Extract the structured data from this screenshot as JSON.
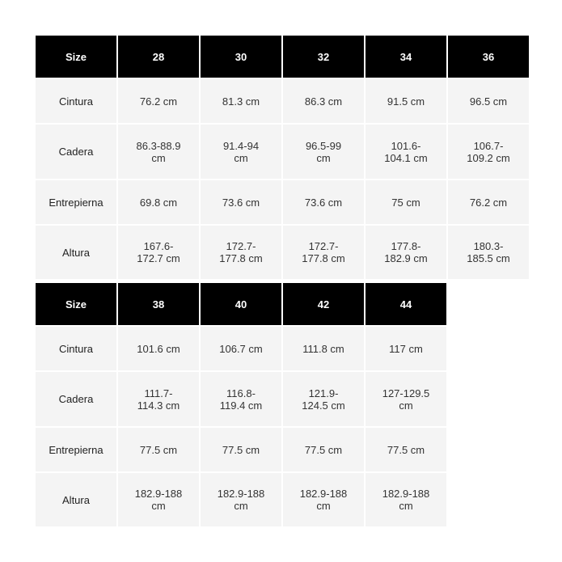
{
  "header_label": "Size",
  "row_labels": [
    "Cintura",
    "Cadera",
    "Entrepierna",
    "Altura"
  ],
  "table1": {
    "sizes": [
      "28",
      "30",
      "32",
      "34",
      "36"
    ],
    "cintura": [
      "76.2 cm",
      "81.3 cm",
      "86.3 cm",
      "91.5 cm",
      "96.5 cm"
    ],
    "cadera": [
      "86.3-88.9 cm",
      "91.4-94 cm",
      "96.5-99 cm",
      "101.6-104.1 cm",
      "106.7-109.2 cm"
    ],
    "entrepierna": [
      "69.8 cm",
      "73.6 cm",
      "73.6 cm",
      "75 cm",
      "76.2 cm"
    ],
    "altura": [
      "167.6-172.7 cm",
      "172.7-177.8 cm",
      "172.7-177.8 cm",
      "177.8-182.9 cm",
      "180.3-185.5 cm"
    ]
  },
  "table2": {
    "sizes": [
      "38",
      "40",
      "42",
      "44"
    ],
    "cintura": [
      "101.6 cm",
      "106.7 cm",
      "111.8 cm",
      "117 cm"
    ],
    "cadera": [
      "111.7-114.3 cm",
      "116.8-119.4 cm",
      "121.9-124.5 cm",
      "127-129.5 cm"
    ],
    "entrepierna": [
      "77.5 cm",
      "77.5 cm",
      "77.5 cm",
      "77.5 cm"
    ],
    "altura": [
      "182.9-188 cm",
      "182.9-188 cm",
      "182.9-188 cm",
      "182.9-188 cm"
    ]
  },
  "colors": {
    "header_bg": "#000000",
    "header_text": "#ffffff",
    "cell_bg": "#f4f4f4"
  }
}
